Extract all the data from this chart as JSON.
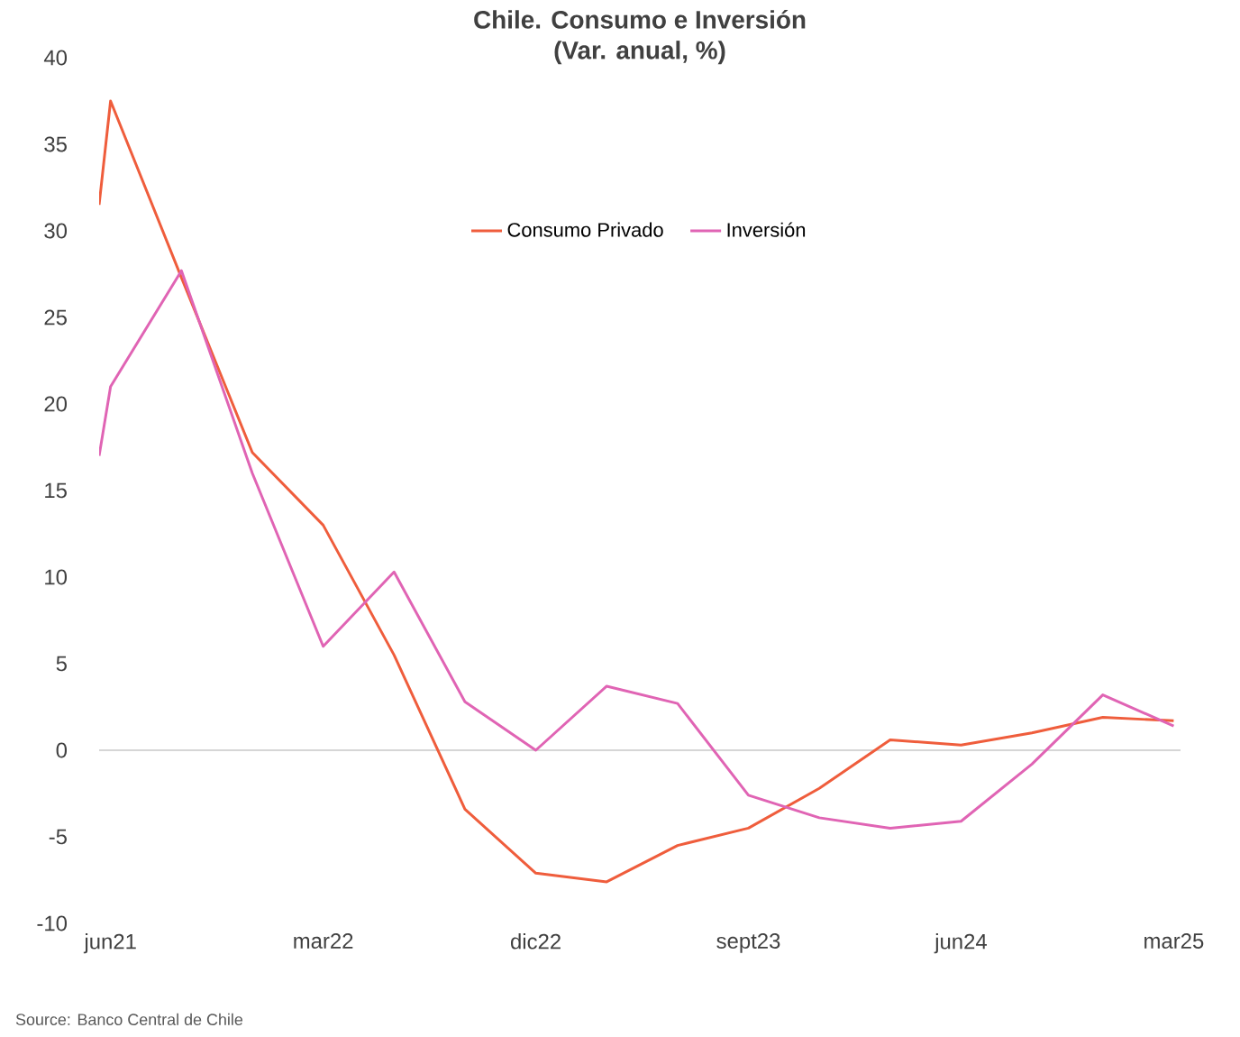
{
  "chart_data": {
    "type": "line",
    "title": "Chile. Consumo e Inversión",
    "subtitle": "(Var. anual, %)",
    "x": [
      "2021-05-17",
      "2021-06",
      "2021-09",
      "2021-12",
      "2022-03",
      "2022-06",
      "2022-09",
      "2022-12",
      "2023-03",
      "2023-06",
      "2023-09",
      "2023-12",
      "2024-03",
      "2024-06",
      "2024-09",
      "2024-12",
      "2025-03"
    ],
    "series": [
      {
        "name": "Consumo Privado",
        "color": "#ef5d3c",
        "values": [
          31.5,
          37.5,
          27.3,
          17.2,
          13,
          5.5,
          -3.4,
          -7.1,
          -7.6,
          -5.5,
          -4.5,
          -2.2,
          0.6,
          0.3,
          1.0,
          1.9,
          1.7
        ]
      },
      {
        "name": "Inversión",
        "color": "#e064b4",
        "values": [
          17,
          21,
          27.7,
          16,
          6,
          10.3,
          2.8,
          0,
          3.7,
          2.7,
          -2.6,
          -3.9,
          -4.5,
          -4.1,
          -0.8,
          3.2,
          1.4
        ]
      }
    ],
    "xlim": [
      "2021-05-17",
      "2025-03-10"
    ],
    "xticks": [
      {
        "value": "2021-06",
        "label": "jun21"
      },
      {
        "value": "2022-03",
        "label": "mar22"
      },
      {
        "value": "2022-12",
        "label": "dic22"
      },
      {
        "value": "2023-09",
        "label": "sept23"
      },
      {
        "value": "2024-06",
        "label": "jun24"
      },
      {
        "value": "2025-03",
        "label": "mar25"
      }
    ],
    "ylim": [
      -10,
      40
    ],
    "yticks": [
      -10,
      -5,
      0,
      5,
      10,
      15,
      20,
      25,
      30,
      35,
      40
    ],
    "ref_lines": [
      {
        "axis": "y",
        "value": 0,
        "color": "#c8c8c8"
      }
    ],
    "grid": false,
    "legend": "top",
    "marker": "none",
    "line_style": "solid",
    "annotations": [
      "Source: Banco Central de Chile"
    ]
  }
}
